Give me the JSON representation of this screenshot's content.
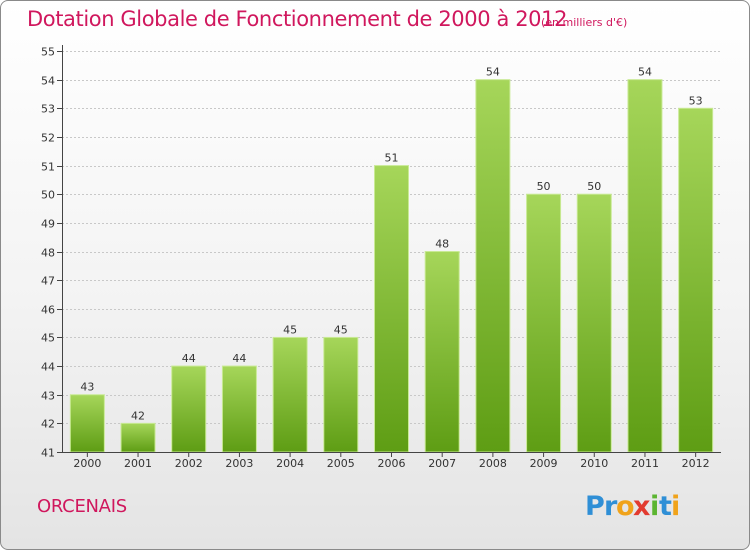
{
  "chart_title": "Dotation Globale de Fonctionnement de 2000 à 2012",
  "chart_subtitle": "(en milliers d'€)",
  "commune_name": "ORCENAIS",
  "logo": {
    "text": "Proxiti"
  },
  "colors": {
    "title": "#d0175d",
    "bar_top": "#a6d65a",
    "bar_bottom": "#5e9d14",
    "bar_edge": "#c9ea95",
    "axis": "#444444"
  },
  "chart_data": {
    "type": "bar",
    "title": "Dotation Globale de Fonctionnement de 2000 à 2012",
    "subtitle": "(en milliers d'€)",
    "categories": [
      "2000",
      "2001",
      "2002",
      "2003",
      "2004",
      "2005",
      "2006",
      "2007",
      "2008",
      "2009",
      "2010",
      "2011",
      "2012"
    ],
    "values": [
      43,
      42,
      44,
      44,
      45,
      45,
      51,
      48,
      54,
      50,
      50,
      54,
      53
    ],
    "ylim": [
      41,
      55
    ],
    "yticks": [
      41,
      42,
      43,
      44,
      45,
      46,
      47,
      48,
      49,
      50,
      51,
      52,
      53,
      54,
      55
    ],
    "grid": true,
    "data_labels": true,
    "legend": "none"
  }
}
